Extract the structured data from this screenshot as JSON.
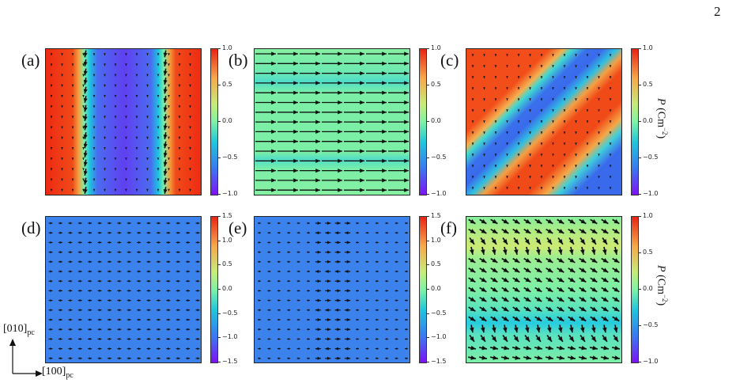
{
  "page_number": "2",
  "orientation": {
    "y_axis": {
      "label": "[010]",
      "sub": "pc"
    },
    "x_axis": {
      "label": "[100]",
      "sub": "pc"
    }
  },
  "colorbar_label": {
    "symbol": "P",
    "units": "(Cm",
    "exp": "−2",
    "close": ")"
  },
  "colormap": "rainbow (purple → blue → cyan → green → orange → red)",
  "panels": [
    {
      "label": "(a)",
      "ticks": [
        "1.0",
        "0.5",
        "0.0",
        "−0.5",
        "−1.0"
      ],
      "field": "two vertical domain walls; red outer domains, blue middle domain; dense down arrows at walls"
    },
    {
      "label": "(b)",
      "ticks": [
        "1.0",
        "0.5",
        "0.0",
        "−0.5",
        "−1.0"
      ],
      "field": "uniform green; rows of long horizontal arrows"
    },
    {
      "label": "(c)",
      "ticks": [
        "1.0",
        "0.5",
        "0.0",
        "−0.5",
        "−1.0"
      ],
      "field": "diagonal red stripe between blue regions"
    },
    {
      "label": "(d)",
      "ticks": [
        "1.5",
        "1.0",
        "0.5",
        "0.0",
        "−0.5",
        "−1.0",
        "−1.5"
      ],
      "field": "uniform blue; small arrows"
    },
    {
      "label": "(e)",
      "ticks": [
        "1.5",
        "1.0",
        "0.5",
        "0.0",
        "−0.5",
        "−1.0",
        "−1.5"
      ],
      "field": "uniform blue; small arrows, larger near center column"
    },
    {
      "label": "(f)",
      "ticks": [
        "1.0",
        "0.5",
        "0.0",
        "−0.5",
        "−1.0"
      ],
      "field": "green with yellow band near top and cyan band near bottom; diagonal arrows"
    }
  ]
}
